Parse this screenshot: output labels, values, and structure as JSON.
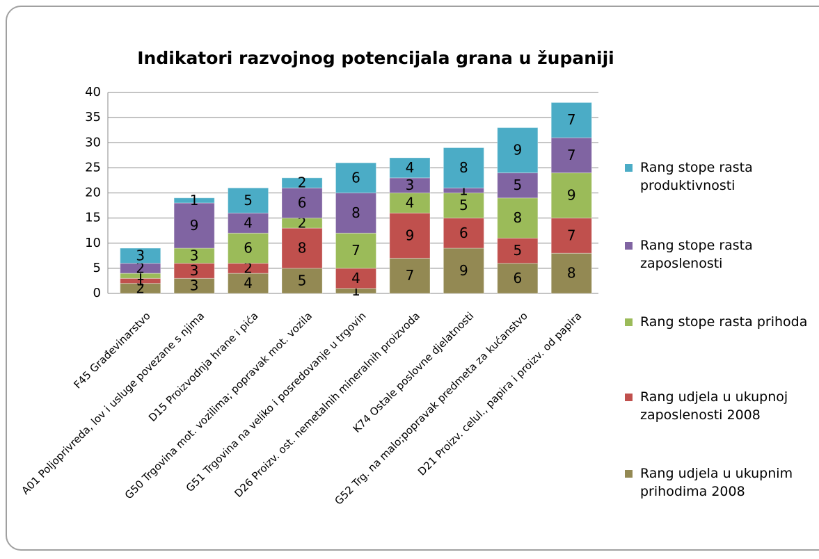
{
  "chart_data": {
    "type": "stacked-bar",
    "title": "Indikatori razvojnog potencijala grana u županiji",
    "categories": [
      "F45 Građevinarstvo",
      "A01 Poljoprivreda, lov i usluge povezane s njima",
      "D15 Proizvodnja hrane i pića",
      "G50 Trgovina mot. vozilima; popravak mot. vozila",
      "G51 Trgovina na veliko i posredovanje u trgovin",
      "D26 Proizv. ost. nemetalnih mineralnih proizvoda",
      "K74 Ostale poslovne djelatnosti",
      "G52 Trg. na malo;popravak predmeta za kućanstvo",
      "D21 Proizv. celul., papira i proizv. od papira"
    ],
    "series": [
      {
        "name": "Rang udjela u ukupnim prihodima 2008",
        "color": "#938953",
        "values": [
          2,
          3,
          4,
          5,
          1,
          7,
          9,
          6,
          8
        ]
      },
      {
        "name": "Rang udjela u ukupnoj zaposlenosti 2008",
        "color": "#c0504d",
        "values": [
          1,
          3,
          2,
          8,
          4,
          9,
          6,
          5,
          7
        ]
      },
      {
        "name": "Rang stope rasta prihoda",
        "color": "#9bbb59",
        "values": [
          1,
          3,
          6,
          2,
          7,
          4,
          5,
          8,
          9
        ]
      },
      {
        "name": "Rang stope rasta zaposlenosti",
        "color": "#8064a2",
        "values": [
          2,
          9,
          4,
          6,
          8,
          3,
          1,
          5,
          7
        ]
      },
      {
        "name": "Rang stope rasta produktivnosti",
        "color": "#4bacc6",
        "values": [
          3,
          1,
          5,
          2,
          6,
          4,
          8,
          9,
          7
        ]
      }
    ],
    "ylim": [
      0,
      40
    ],
    "yticks": [
      0,
      5,
      10,
      15,
      20,
      25,
      30,
      35,
      40
    ],
    "grid": true,
    "legend": "right"
  }
}
